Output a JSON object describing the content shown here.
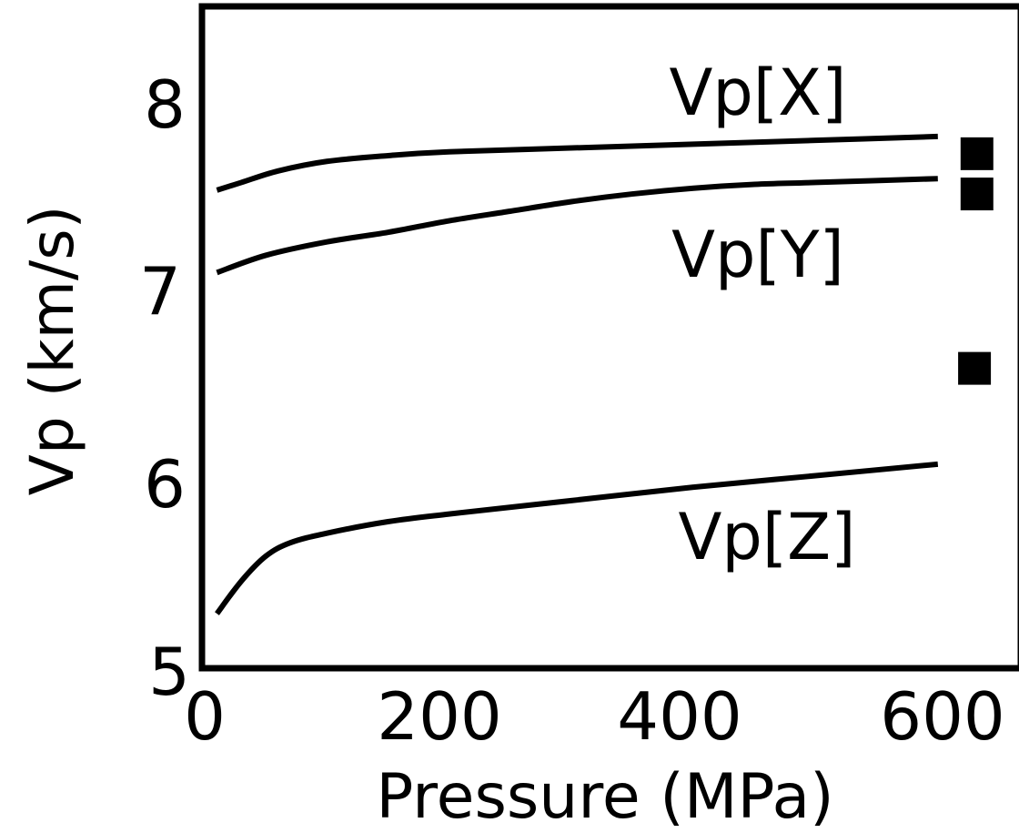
{
  "chart_data": {
    "type": "line",
    "title": "",
    "xlabel": "Pressure (MPa)",
    "ylabel": "Vp (km/s)",
    "xlim": [
      0,
      600
    ],
    "ylim": [
      5,
      8
    ],
    "x_ticks": [
      "0",
      "200",
      "400",
      "600"
    ],
    "y_ticks": [
      "5",
      "6",
      "7",
      "8"
    ],
    "grid": false,
    "legend": "none",
    "series": [
      {
        "name": "Vp[X]",
        "color": "#000000",
        "x": [
          10,
          30,
          60,
          100,
          150,
          200,
          300,
          400,
          500,
          600
        ],
        "y": [
          7.49,
          7.53,
          7.59,
          7.64,
          7.67,
          7.69,
          7.71,
          7.73,
          7.75,
          7.77
        ]
      },
      {
        "name": "Vp[Y]",
        "color": "#000000",
        "x": [
          10,
          50,
          100,
          150,
          200,
          250,
          300,
          350,
          400,
          450,
          500,
          600
        ],
        "y": [
          7.06,
          7.15,
          7.22,
          7.27,
          7.33,
          7.38,
          7.43,
          7.47,
          7.5,
          7.52,
          7.53,
          7.55
        ]
      },
      {
        "name": "Vp[Z]",
        "color": "#000000",
        "x": [
          10,
          30,
          50,
          70,
          100,
          150,
          200,
          300,
          400,
          500,
          600
        ],
        "y": [
          5.28,
          5.45,
          5.58,
          5.65,
          5.7,
          5.76,
          5.8,
          5.87,
          5.94,
          6.0,
          6.06
        ]
      }
    ],
    "markers": [
      {
        "x": 632,
        "y": 7.68
      },
      {
        "x": 632,
        "y": 7.47
      },
      {
        "x": 630,
        "y": 6.56
      }
    ]
  }
}
